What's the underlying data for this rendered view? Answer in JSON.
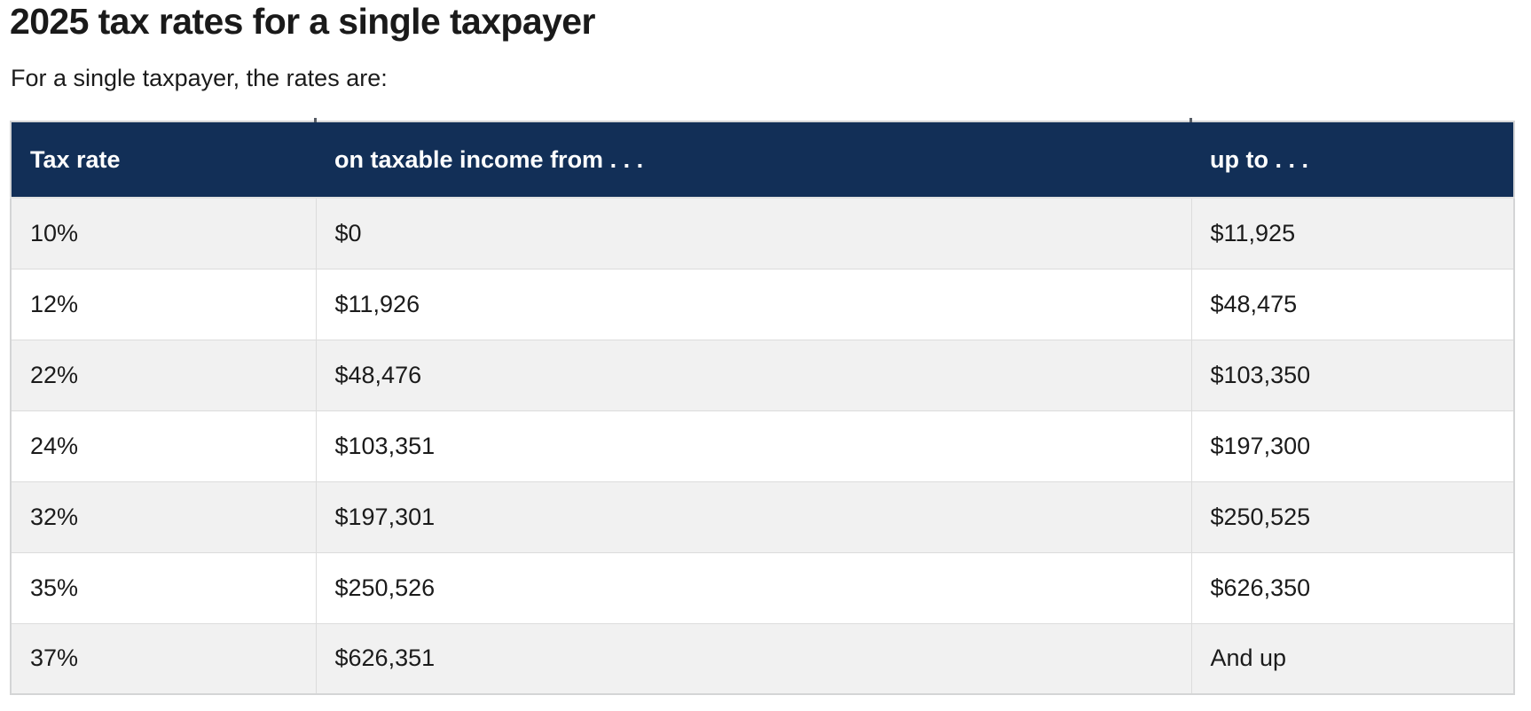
{
  "page": {
    "title": "2025 tax rates for a single taxpayer",
    "subtitle": "For a single taxpayer, the rates are:"
  },
  "table": {
    "columns": [
      "Tax rate",
      "on taxable income from . . .",
      "up to . . ."
    ],
    "rows": [
      [
        "10%",
        "$0",
        "$11,925"
      ],
      [
        "12%",
        "$11,926",
        "$48,475"
      ],
      [
        "22%",
        "$48,476",
        "$103,350"
      ],
      [
        "24%",
        "$103,351",
        "$197,300"
      ],
      [
        "32%",
        "$197,301",
        "$250,525"
      ],
      [
        "35%",
        "$250,526",
        "$626,350"
      ],
      [
        "37%",
        "$626,351",
        "And up"
      ]
    ],
    "colors": {
      "header_bg": "#122f57",
      "header_text": "#ffffff",
      "row_bg": "#ffffff",
      "row_alt_bg": "#f1f1f1",
      "border": "#dcdcdc",
      "border_outer": "#d4d5d6",
      "text": "#1b1b1b",
      "title_color": "#1a1a1a"
    }
  }
}
